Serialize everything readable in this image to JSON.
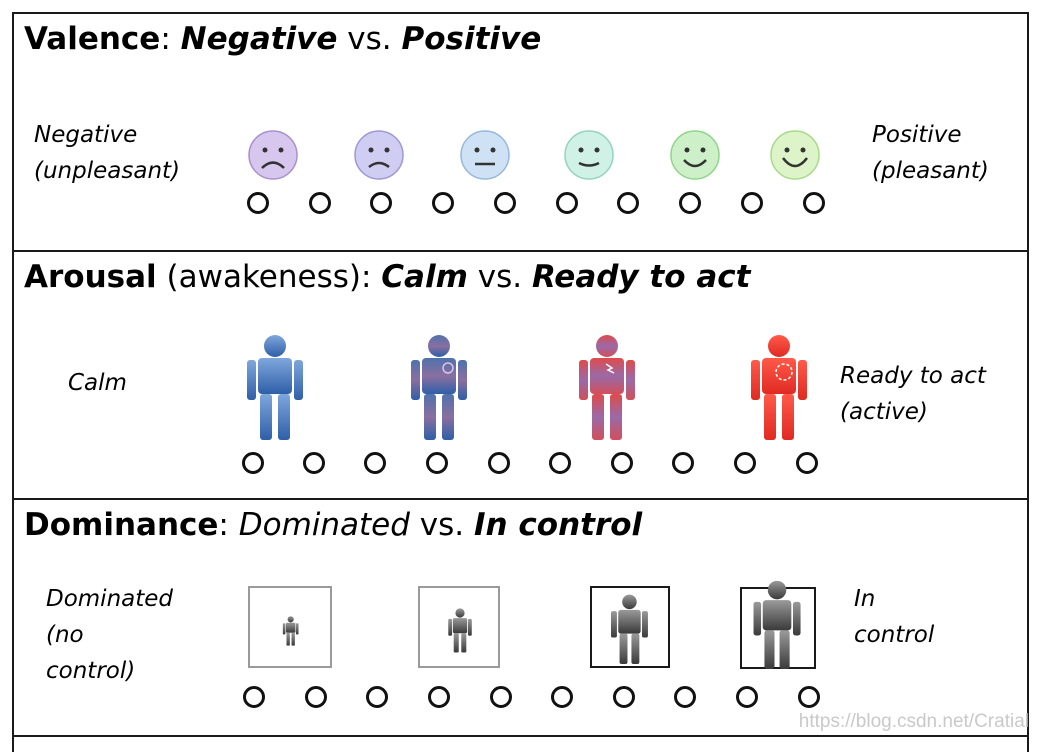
{
  "valence": {
    "title_bold": "Valence",
    "title_colon": ": ",
    "title_neg": "Negative",
    "title_vs": " vs. ",
    "title_pos": "Positive",
    "left_label": [
      "Negative",
      "(unpleasant)"
    ],
    "right_label": [
      "Positive",
      "(pleasant)"
    ],
    "faces": [
      "frown-face",
      "frown-face",
      "neutral-face",
      "slight-smile-face",
      "smile-face",
      "smile-face"
    ]
  },
  "arousal": {
    "title_bold": "Arousal",
    "title_paren": " (awakeness): ",
    "title_calm": "Calm",
    "title_vs": " vs. ",
    "title_ready": "Ready to act",
    "left_label": [
      "Calm"
    ],
    "right_label": [
      "Ready to act",
      "(active)"
    ],
    "figures": [
      "calm-figure",
      "mild-arousal-figure",
      "aroused-figure",
      "active-figure"
    ]
  },
  "dominance": {
    "title_bold": "Dominance",
    "title_colon": ": ",
    "title_dom": "Dominated",
    "title_vs": " vs. ",
    "title_ctrl": "In control",
    "left_label": [
      "Dominated",
      "(no",
      "control)"
    ],
    "right_label": [
      "In",
      "control"
    ],
    "figures": [
      "tiny-figure",
      "small-figure",
      "medium-figure",
      "large-figure"
    ]
  },
  "scale_points": 9,
  "colors": {
    "purple": "#c9b8e6",
    "lavender": "#c5c3ee",
    "lightblue": "#c6dcf2",
    "mint": "#c8efe2",
    "green": "#c4ecc0",
    "lightgreen": "#d5f2c0",
    "calm_blue": "#3a6fb8",
    "active_red": "#e63b2e",
    "gray_figure": "#555555"
  },
  "watermark": "https://blog.csdn.net/Cratial"
}
